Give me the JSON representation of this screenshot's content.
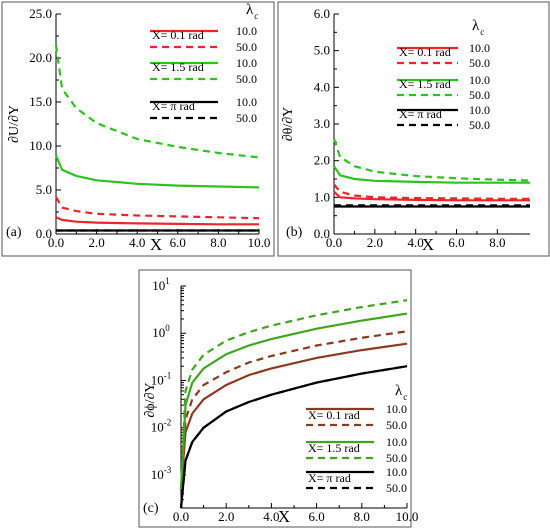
{
  "chart_data": [
    {
      "id": "a",
      "type": "line",
      "panel_label": "(a)",
      "xlabel": "X",
      "ylabel": "∂U/∂Y",
      "xlim": [
        0,
        10
      ],
      "ylim": [
        0,
        25
      ],
      "x_scale": "linear",
      "y_scale": "linear",
      "xticks": [
        "0.0",
        "2.0",
        "4.0",
        "6.0",
        "8.0",
        "10.0"
      ],
      "yticks": [
        "0.0",
        "5.0",
        "10.0",
        "15.0",
        "20.0",
        "25.0"
      ],
      "legend_title": "λ",
      "legend_title_sub": "c",
      "legend_placement": "top-right",
      "legend": [
        {
          "label": "X= 0.1 rad",
          "color": "#e8262b",
          "solid_value": "10.0",
          "dashed_value": "50.0"
        },
        {
          "label": "X= 1.5 rad",
          "color": "#2cc31f",
          "solid_value": "10.0",
          "dashed_value": "50.0"
        },
        {
          "label": "X= π rad",
          "color": "#000000",
          "solid_value": "10.0",
          "dashed_value": "50.0"
        }
      ],
      "series": [
        {
          "color": "#e8262b",
          "style": "solid",
          "x": [
            0,
            0.3,
            1,
            2,
            4,
            6,
            8,
            10
          ],
          "y": [
            1.9,
            1.6,
            1.4,
            1.3,
            1.2,
            1.15,
            1.1,
            1.1
          ]
        },
        {
          "color": "#e8262b",
          "style": "dashed",
          "x": [
            0,
            0.3,
            1,
            2,
            4,
            6,
            8,
            10
          ],
          "y": [
            4.2,
            3.0,
            2.6,
            2.3,
            2.1,
            2.0,
            1.9,
            1.8
          ]
        },
        {
          "color": "#2cc31f",
          "style": "solid",
          "x": [
            0,
            0.3,
            1,
            2,
            4,
            6,
            8,
            10
          ],
          "y": [
            8.9,
            7.3,
            6.6,
            6.1,
            5.7,
            5.5,
            5.4,
            5.3
          ]
        },
        {
          "color": "#2cc31f",
          "style": "dashed",
          "x": [
            0,
            0.3,
            1,
            2,
            4,
            6,
            8,
            10
          ],
          "y": [
            21.5,
            16.5,
            14.3,
            12.6,
            10.8,
            9.9,
            9.2,
            8.7
          ]
        },
        {
          "color": "#000000",
          "style": "solid",
          "x": [
            0,
            10
          ],
          "y": [
            0.4,
            0.4
          ]
        },
        {
          "color": "#000000",
          "style": "dashed",
          "x": [
            0,
            10
          ],
          "y": [
            0.4,
            0.4
          ]
        }
      ]
    },
    {
      "id": "b",
      "type": "line",
      "panel_label": "(b)",
      "xlabel": "X",
      "ylabel": "∂θ/∂Y",
      "xlim": [
        0,
        9.6
      ],
      "ylim": [
        0,
        6
      ],
      "x_scale": "linear",
      "y_scale": "linear",
      "xticks": [
        "0.0",
        "2.0",
        "4.0",
        "6.0",
        "8.0"
      ],
      "yticks": [
        "0.0",
        "1.0",
        "2.0",
        "3.0",
        "4.0",
        "5.0",
        "6.0"
      ],
      "legend_title": "λ",
      "legend_title_sub": "c",
      "legend_placement": "top-right",
      "legend": [
        {
          "label": "X= 0.1 rad",
          "color": "#e8262b",
          "solid_value": "10.0",
          "dashed_value": "50.0"
        },
        {
          "label": "X= 1.5 rad",
          "color": "#2cc31f",
          "solid_value": "10.0",
          "dashed_value": "50.0"
        },
        {
          "label": "X= π rad",
          "color": "#000000",
          "solid_value": "10.0",
          "dashed_value": "50.0"
        }
      ],
      "series": [
        {
          "color": "#e8262b",
          "style": "solid",
          "x": [
            0,
            0.3,
            1,
            2,
            4,
            6,
            8,
            9.6
          ],
          "y": [
            1.15,
            1.0,
            0.97,
            0.95,
            0.93,
            0.92,
            0.92,
            0.92
          ]
        },
        {
          "color": "#e8262b",
          "style": "dashed",
          "x": [
            0,
            0.3,
            1,
            2,
            4,
            6,
            8,
            9.6
          ],
          "y": [
            1.35,
            1.15,
            1.05,
            1.0,
            0.98,
            0.97,
            0.96,
            0.96
          ]
        },
        {
          "color": "#2cc31f",
          "style": "solid",
          "x": [
            0,
            0.3,
            1,
            2,
            4,
            6,
            8,
            9.6
          ],
          "y": [
            1.85,
            1.6,
            1.5,
            1.45,
            1.42,
            1.4,
            1.4,
            1.4
          ]
        },
        {
          "color": "#2cc31f",
          "style": "dashed",
          "x": [
            0,
            0.3,
            1,
            2,
            4,
            6,
            8,
            9.6
          ],
          "y": [
            2.6,
            2.1,
            1.85,
            1.7,
            1.58,
            1.52,
            1.48,
            1.46
          ]
        },
        {
          "color": "#000000",
          "style": "solid",
          "x": [
            0,
            9.6
          ],
          "y": [
            0.75,
            0.75
          ]
        },
        {
          "color": "#000000",
          "style": "dashed",
          "x": [
            0,
            9.6
          ],
          "y": [
            0.78,
            0.78
          ]
        }
      ]
    },
    {
      "id": "c",
      "type": "line",
      "panel_label": "(c)",
      "xlabel": "X",
      "ylabel": "∂ϕ/∂Y",
      "xlim": [
        0,
        10
      ],
      "ylim_exponents": [
        -3.7,
        1
      ],
      "x_scale": "linear",
      "y_scale": "log",
      "xticks": [
        "0.0",
        "2.0",
        "4.0",
        "6.0",
        "8.0",
        "10.0"
      ],
      "yticks": [
        {
          "exp": 1,
          "base": "10",
          "sup": "1"
        },
        {
          "exp": 0,
          "base": "10",
          "sup": "0"
        },
        {
          "exp": -1,
          "base": "10",
          "sup": "-1"
        },
        {
          "exp": -2,
          "base": "10",
          "sup": "-2"
        },
        {
          "exp": -3,
          "base": "10",
          "sup": "-3"
        }
      ],
      "legend_title": "λ",
      "legend_title_sub": "c",
      "legend_placement": "bottom-right",
      "legend": [
        {
          "label": "X= 0.1 rad",
          "color": "#8b3a1f",
          "solid_value": "10.0",
          "dashed_value": "50.0"
        },
        {
          "label": "X= 1.5 rad",
          "color": "#3fa51f",
          "solid_value": "10.0",
          "dashed_value": "50.0"
        },
        {
          "label": "X= π rad",
          "color": "#000000",
          "solid_value": "10.0",
          "dashed_value": "50.0"
        }
      ],
      "series": [
        {
          "color": "#8b3a1f",
          "style": "solid",
          "x": [
            0,
            0.2,
            0.5,
            1,
            2,
            3,
            4,
            6,
            8,
            10
          ],
          "y": [
            0.0005,
            0.008,
            0.02,
            0.04,
            0.08,
            0.13,
            0.18,
            0.3,
            0.44,
            0.6
          ]
        },
        {
          "color": "#8b3a1f",
          "style": "dashed",
          "x": [
            0,
            0.2,
            0.5,
            1,
            2,
            3,
            4,
            6,
            8,
            10
          ],
          "y": [
            0.0005,
            0.015,
            0.04,
            0.08,
            0.15,
            0.24,
            0.33,
            0.55,
            0.8,
            1.1
          ]
        },
        {
          "color": "#3fa51f",
          "style": "solid",
          "x": [
            0,
            0.2,
            0.5,
            1,
            2,
            3,
            4,
            6,
            8,
            10
          ],
          "y": [
            0.0005,
            0.03,
            0.09,
            0.18,
            0.36,
            0.55,
            0.75,
            1.25,
            1.85,
            2.6
          ]
        },
        {
          "color": "#3fa51f",
          "style": "dashed",
          "x": [
            0,
            0.2,
            0.5,
            1,
            2,
            3,
            4,
            6,
            8,
            10
          ],
          "y": [
            0.0005,
            0.06,
            0.17,
            0.35,
            0.7,
            1.05,
            1.45,
            2.4,
            3.6,
            5.0
          ]
        },
        {
          "color": "#000000",
          "style": "solid",
          "x": [
            0,
            0.2,
            0.5,
            1,
            2,
            3,
            4,
            6,
            8,
            10
          ],
          "y": [
            0.0002,
            0.002,
            0.005,
            0.01,
            0.022,
            0.035,
            0.05,
            0.09,
            0.14,
            0.2
          ]
        },
        {
          "color": "#000000",
          "style": "dashed",
          "x": [
            0,
            0.2,
            0.5,
            1,
            2,
            3,
            4,
            6,
            8,
            10
          ],
          "y": [
            0.0002,
            0.002,
            0.005,
            0.01,
            0.022,
            0.035,
            0.05,
            0.09,
            0.14,
            0.2
          ]
        }
      ]
    }
  ]
}
